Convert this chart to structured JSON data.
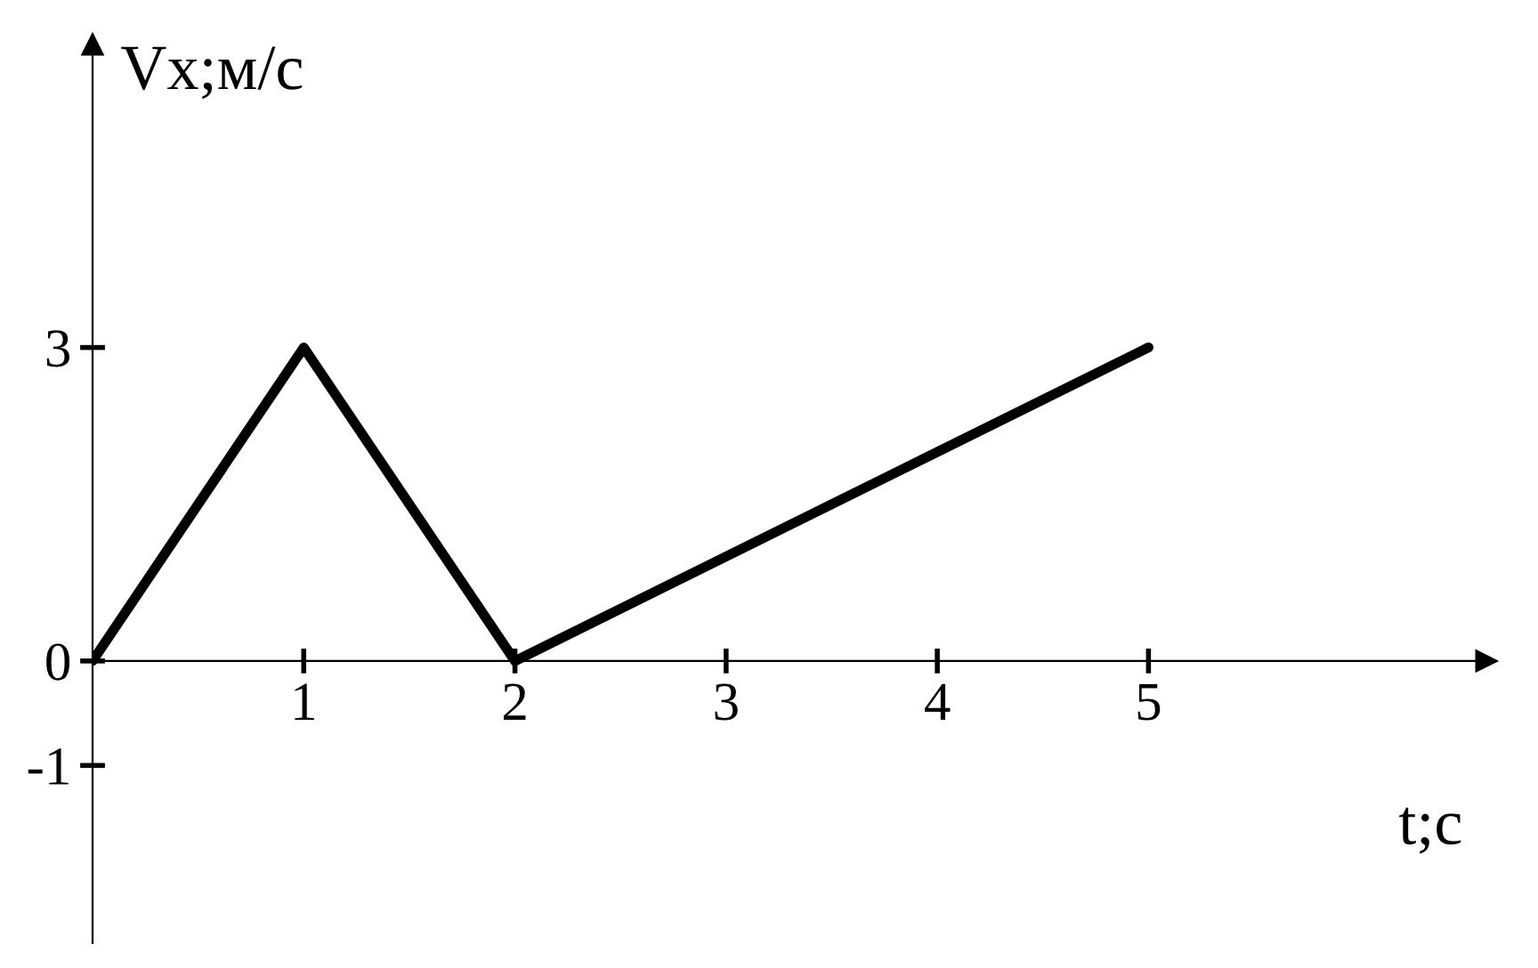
{
  "chart_data": {
    "type": "line",
    "xlabel": "t;с",
    "ylabel": "Vx;м/с",
    "x": [
      0,
      1,
      2,
      5
    ],
    "values": [
      0,
      3,
      0,
      3
    ],
    "color": "#000000",
    "xlim": [
      0,
      6.6
    ],
    "ylim": [
      -2.7,
      5.9
    ],
    "xticks": [
      1,
      2,
      3,
      4,
      5
    ],
    "yticks": [
      -1,
      0,
      3
    ]
  }
}
